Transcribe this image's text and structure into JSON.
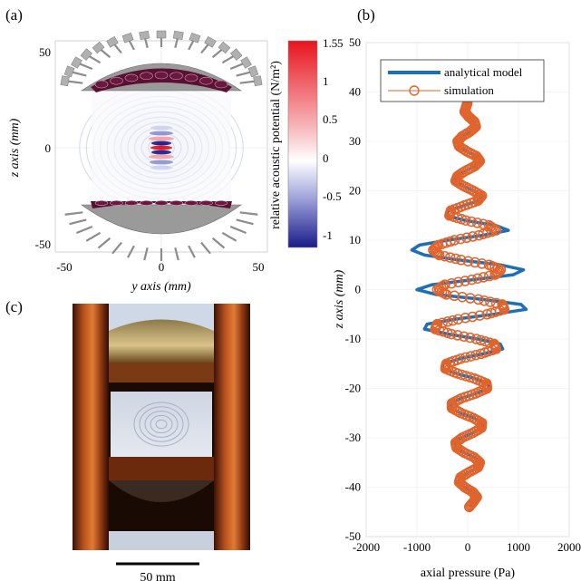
{
  "panels": {
    "a": "(a)",
    "b": "(b)",
    "c": "(c)"
  },
  "panel_a": {
    "xlabel": "y axis (mm)",
    "ylabel": "z axis (mm)",
    "xticks": [
      "-50",
      "0",
      "50"
    ],
    "yticks": [
      "50",
      "0",
      "-50"
    ],
    "colorbar_label": "relative acoustic potential (N/m²)",
    "colorbar_ticks": [
      "1.5",
      "1",
      "0.5",
      "0",
      "-0.5",
      "-1"
    ],
    "colorbar_top_extra": "5",
    "colors": {
      "positive": "#e8141e",
      "negative": "#1a1a8a",
      "transducer": "#8a8a8a",
      "cap": "#5a1030"
    }
  },
  "panel_c": {
    "scalebar_label": "50 mm",
    "colors": {
      "copper": "#b5501c",
      "glass": "#d8dde6"
    }
  },
  "chart_data": {
    "type": "line",
    "xlabel": "axial pressure (Pa)",
    "ylabel": "z axis (mm)",
    "xlim": [
      -2000,
      2000
    ],
    "ylim": [
      -50,
      50
    ],
    "xticks": [
      "-2000",
      "-1000",
      "0",
      "1000",
      "2000"
    ],
    "yticks": [
      "50",
      "40",
      "30",
      "20",
      "10",
      "0",
      "-10",
      "-20",
      "-30",
      "-40",
      "-50"
    ],
    "legend_position": "top-left",
    "series": [
      {
        "name": "analytical model",
        "color": "#1f6fb5",
        "style": "line",
        "z": [
          -44,
          -43,
          -42,
          -41,
          -40,
          -39,
          -38,
          -37,
          -36,
          -35,
          -34,
          -33,
          -32,
          -31,
          -30,
          -29,
          -28,
          -27,
          -26,
          -25,
          -24,
          -23,
          -22,
          -21,
          -20,
          -19,
          -18,
          -17,
          -16,
          -15,
          -14,
          -13,
          -12,
          -11,
          -10,
          -9,
          -8,
          -7,
          -6,
          -5,
          -4,
          -3,
          -2,
          -1,
          0,
          1,
          2,
          3,
          4,
          5,
          6,
          7,
          8,
          9,
          10,
          11,
          12,
          13,
          14,
          15,
          16,
          17,
          18,
          19,
          20,
          21,
          22,
          23,
          24,
          25,
          26,
          27,
          28,
          29,
          30,
          31,
          32,
          33,
          34,
          35,
          36,
          37,
          38
        ],
        "p": [
          30,
          120,
          200,
          110,
          -60,
          -180,
          -150,
          20,
          210,
          260,
          140,
          -70,
          -230,
          -260,
          -120,
          100,
          290,
          300,
          120,
          -140,
          -330,
          -330,
          -130,
          170,
          410,
          400,
          140,
          -220,
          -500,
          -480,
          -160,
          300,
          690,
          640,
          200,
          -380,
          -850,
          -800,
          -250,
          500,
          1150,
          1050,
          300,
          -620,
          -1000,
          -700,
          100,
          900,
          1100,
          650,
          -180,
          -850,
          -1100,
          -950,
          -400,
          300,
          800,
          550,
          -50,
          -420,
          -380,
          -80,
          220,
          300,
          120,
          -100,
          -260,
          -220,
          -60,
          150,
          260,
          180,
          -20,
          -180,
          -220,
          -120,
          50,
          170,
          140,
          20,
          -60,
          -30,
          0
        ]
      },
      {
        "name": "simulation",
        "color": "#e0642c",
        "style": "markers",
        "z": [
          -44,
          -43,
          -42,
          -41,
          -40,
          -39,
          -38,
          -37,
          -36,
          -35,
          -34,
          -33,
          -32,
          -31,
          -30,
          -29,
          -28,
          -27,
          -26,
          -25,
          -24,
          -23,
          -22,
          -21,
          -20,
          -19,
          -18,
          -17,
          -16,
          -15,
          -14,
          -13,
          -12,
          -11,
          -10,
          -9,
          -8,
          -7,
          -6,
          -5,
          -4,
          -3,
          -2,
          -1,
          0,
          1,
          2,
          3,
          4,
          5,
          6,
          7,
          8,
          9,
          10,
          11,
          12,
          13,
          14,
          15,
          16,
          17,
          18,
          19,
          20,
          21,
          22,
          23,
          24,
          25,
          26,
          27,
          28,
          29,
          30,
          31,
          32,
          33,
          34,
          35,
          36,
          37,
          38
        ],
        "p": [
          30,
          110,
          180,
          100,
          -60,
          -170,
          -140,
          20,
          200,
          240,
          130,
          -70,
          -220,
          -240,
          -110,
          100,
          270,
          280,
          110,
          -130,
          -310,
          -310,
          -120,
          160,
          380,
          370,
          130,
          -200,
          -440,
          -420,
          -140,
          260,
          560,
          520,
          170,
          -320,
          -640,
          -600,
          -190,
          380,
          720,
          680,
          210,
          -420,
          -600,
          -450,
          80,
          540,
          650,
          420,
          -130,
          -560,
          -680,
          -580,
          -260,
          220,
          560,
          420,
          -40,
          -360,
          -330,
          -70,
          200,
          280,
          110,
          -90,
          -240,
          -200,
          -50,
          140,
          240,
          170,
          -20,
          -170,
          -200,
          -110,
          50,
          160,
          130,
          20,
          -60,
          -30,
          0
        ]
      }
    ]
  }
}
